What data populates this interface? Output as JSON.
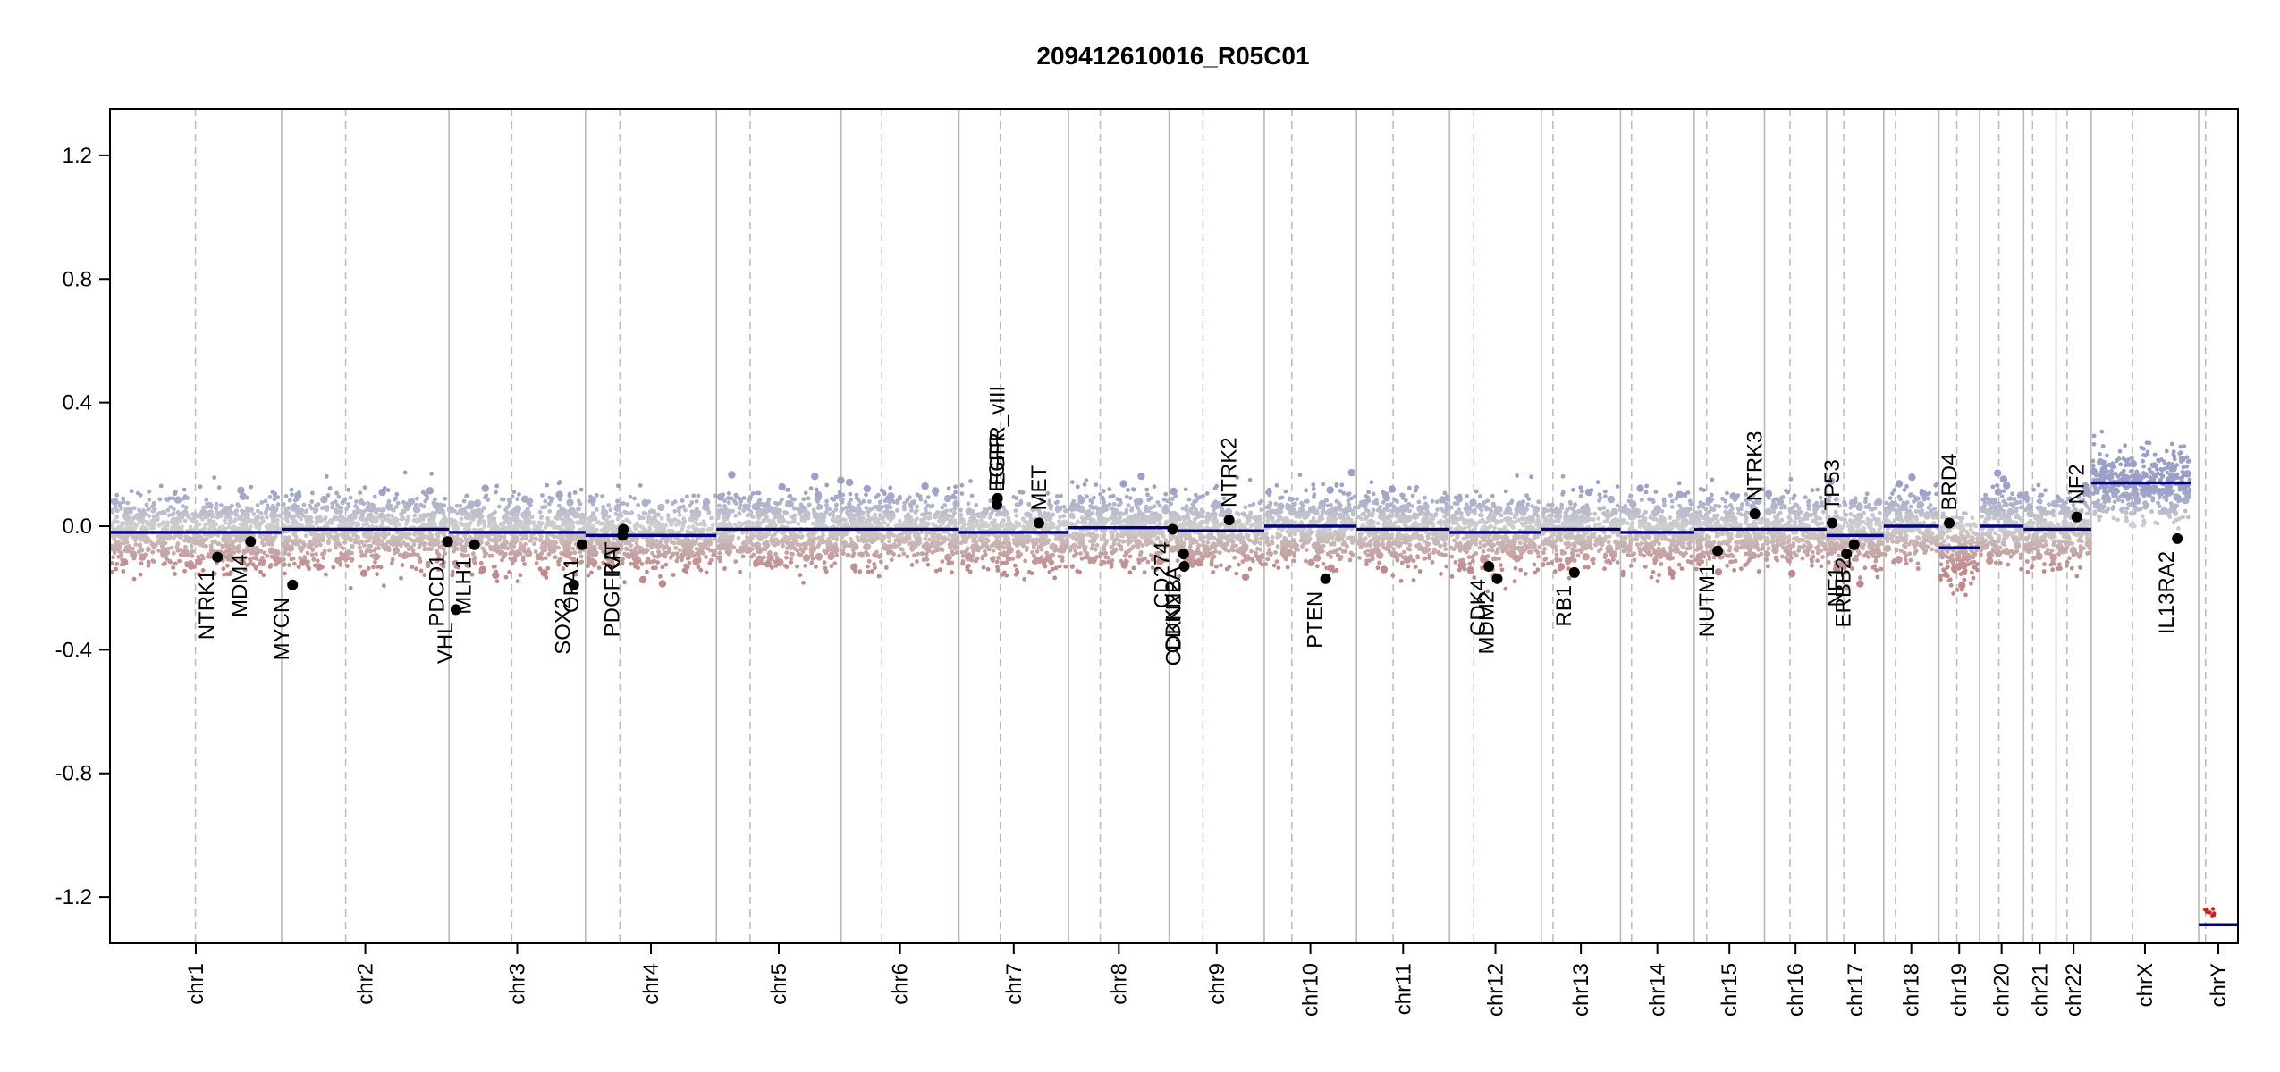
{
  "chart_data": {
    "type": "scatter",
    "title": "209412610016_R05C01",
    "xlabel": "",
    "ylabel": "",
    "ylim": [
      -1.35,
      1.35
    ],
    "y_ticks": [
      {
        "value": 1.2,
        "label": "1.2"
      },
      {
        "value": 0.8,
        "label": "0.8"
      },
      {
        "value": 0.4,
        "label": "0.4"
      },
      {
        "value": 0.0,
        "label": "0.0"
      },
      {
        "value": -0.4,
        "label": "-0.4"
      },
      {
        "value": -0.8,
        "label": "-0.8"
      },
      {
        "value": -1.2,
        "label": "-1.2"
      }
    ],
    "grid": "vertical chromosome boundaries (solid) and centromeres (dashed)",
    "chromosomes": [
      {
        "name": "chr1",
        "start": 0,
        "end": 249,
        "centromere": 124
      },
      {
        "name": "chr2",
        "start": 249,
        "end": 492,
        "centromere": 342
      },
      {
        "name": "chr3",
        "start": 492,
        "end": 690,
        "centromere": 583
      },
      {
        "name": "chr4",
        "start": 690,
        "end": 880,
        "centromere": 740
      },
      {
        "name": "chr5",
        "start": 880,
        "end": 1061,
        "centromere": 929
      },
      {
        "name": "chr6",
        "start": 1061,
        "end": 1232,
        "centromere": 1120
      },
      {
        "name": "chr7",
        "start": 1232,
        "end": 1391,
        "centromere": 1292
      },
      {
        "name": "chr8",
        "start": 1391,
        "end": 1537,
        "centromere": 1437
      },
      {
        "name": "chr9",
        "start": 1537,
        "end": 1675,
        "centromere": 1586
      },
      {
        "name": "chr10",
        "start": 1675,
        "end": 1809,
        "centromere": 1715
      },
      {
        "name": "chr11",
        "start": 1809,
        "end": 1944,
        "centromere": 1862
      },
      {
        "name": "chr12",
        "start": 1944,
        "end": 2077,
        "centromere": 1979
      },
      {
        "name": "chr13",
        "start": 2077,
        "end": 2192,
        "centromere": 2094
      },
      {
        "name": "chr14",
        "start": 2192,
        "end": 2299,
        "centromere": 2208
      },
      {
        "name": "chr15",
        "start": 2299,
        "end": 2401,
        "centromere": 2317
      },
      {
        "name": "chr16",
        "start": 2401,
        "end": 2491,
        "centromere": 2438
      },
      {
        "name": "chr17",
        "start": 2491,
        "end": 2574,
        "centromere": 2516
      },
      {
        "name": "chr18",
        "start": 2574,
        "end": 2654,
        "centromere": 2591
      },
      {
        "name": "chr19",
        "start": 2654,
        "end": 2713,
        "centromere": 2680
      },
      {
        "name": "chr20",
        "start": 2713,
        "end": 2777,
        "centromere": 2741
      },
      {
        "name": "chr21",
        "start": 2777,
        "end": 2824,
        "centromere": 2790
      },
      {
        "name": "chr22",
        "start": 2824,
        "end": 2875,
        "centromere": 2840
      },
      {
        "name": "chrX",
        "start": 2875,
        "end": 3031,
        "centromere": 2935
      },
      {
        "name": "chrY",
        "start": 3031,
        "end": 3088,
        "centromere": 3041
      }
    ],
    "segments": [
      {
        "start": 0,
        "end": 249,
        "value": -0.02
      },
      {
        "start": 249,
        "end": 492,
        "value": -0.01
      },
      {
        "start": 492,
        "end": 690,
        "value": -0.02
      },
      {
        "start": 690,
        "end": 880,
        "value": -0.03
      },
      {
        "start": 880,
        "end": 1232,
        "value": -0.01
      },
      {
        "start": 1232,
        "end": 1391,
        "value": -0.02
      },
      {
        "start": 1391,
        "end": 1537,
        "value": -0.005
      },
      {
        "start": 1537,
        "end": 1675,
        "value": -0.015
      },
      {
        "start": 1675,
        "end": 1809,
        "value": 0.0
      },
      {
        "start": 1809,
        "end": 1944,
        "value": -0.01
      },
      {
        "start": 1944,
        "end": 2077,
        "value": -0.02
      },
      {
        "start": 2077,
        "end": 2192,
        "value": -0.01
      },
      {
        "start": 2192,
        "end": 2299,
        "value": -0.02
      },
      {
        "start": 2299,
        "end": 2401,
        "value": -0.01
      },
      {
        "start": 2401,
        "end": 2491,
        "value": -0.01
      },
      {
        "start": 2491,
        "end": 2574,
        "value": -0.03
      },
      {
        "start": 2574,
        "end": 2654,
        "value": 0.0
      },
      {
        "start": 2654,
        "end": 2713,
        "value": -0.07
      },
      {
        "start": 2713,
        "end": 2777,
        "value": 0.0
      },
      {
        "start": 2777,
        "end": 2824,
        "value": -0.01
      },
      {
        "start": 2824,
        "end": 2875,
        "value": -0.01
      },
      {
        "start": 2875,
        "end": 3020,
        "value": 0.14
      },
      {
        "start": 3031,
        "end": 3088,
        "value": -1.29
      }
    ],
    "genes": [
      {
        "name": "NTRK1",
        "pos": 156,
        "value": -0.1,
        "side": "below"
      },
      {
        "name": "MDM4",
        "pos": 204,
        "value": -0.05,
        "side": "below"
      },
      {
        "name": "MYCN",
        "pos": 265,
        "value": -0.19,
        "side": "below"
      },
      {
        "name": "PDCD1",
        "pos": 490,
        "value": -0.05,
        "side": "below"
      },
      {
        "name": "VHL",
        "pos": 502,
        "value": -0.27,
        "side": "below"
      },
      {
        "name": "MLH1",
        "pos": 529,
        "value": -0.06,
        "side": "below"
      },
      {
        "name": "SOX2",
        "pos": 673,
        "value": -0.19,
        "side": "below"
      },
      {
        "name": "OPA1",
        "pos": 685,
        "value": -0.06,
        "side": "below"
      },
      {
        "name": "PDGFRA",
        "pos": 744,
        "value": -0.03,
        "side": "below"
      },
      {
        "name": "KIT",
        "pos": 745,
        "value": -0.01,
        "side": "below"
      },
      {
        "name": "EGFR",
        "pos": 1287,
        "value": 0.07,
        "side": "above"
      },
      {
        "name": "EGFR_vIII",
        "pos": 1288,
        "value": 0.09,
        "side": "above"
      },
      {
        "name": "MET",
        "pos": 1348,
        "value": 0.01,
        "side": "above"
      },
      {
        "name": "CD274",
        "pos": 1542,
        "value": -0.01,
        "side": "below"
      },
      {
        "name": "CDKN2A",
        "pos": 1558,
        "value": -0.09,
        "side": "below"
      },
      {
        "name": "CDKN2B",
        "pos": 1559,
        "value": -0.13,
        "side": "below"
      },
      {
        "name": "NTRK2",
        "pos": 1624,
        "value": 0.02,
        "side": "above"
      },
      {
        "name": "PTEN",
        "pos": 1764,
        "value": -0.17,
        "side": "below"
      },
      {
        "name": "CDK4",
        "pos": 2001,
        "value": -0.13,
        "side": "below"
      },
      {
        "name": "MDM2",
        "pos": 2013,
        "value": -0.17,
        "side": "below"
      },
      {
        "name": "RB1",
        "pos": 2125,
        "value": -0.15,
        "side": "below"
      },
      {
        "name": "NUTM1",
        "pos": 2333,
        "value": -0.08,
        "side": "below"
      },
      {
        "name": "NTRK3",
        "pos": 2387,
        "value": 0.04,
        "side": "above"
      },
      {
        "name": "TP53",
        "pos": 2499,
        "value": 0.01,
        "side": "above"
      },
      {
        "name": "NF1",
        "pos": 2520,
        "value": -0.09,
        "side": "below"
      },
      {
        "name": "ERBB2",
        "pos": 2531,
        "value": -0.06,
        "side": "below"
      },
      {
        "name": "BRD4",
        "pos": 2669,
        "value": 0.01,
        "side": "above"
      },
      {
        "name": "NF2",
        "pos": 2854,
        "value": 0.03,
        "side": "above"
      },
      {
        "name": "IL13RA2",
        "pos": 3000,
        "value": -0.04,
        "side": "below"
      }
    ],
    "colors": {
      "gain": "#9aa0c8",
      "neutral": "#cfcfcf",
      "loss": "#c08a8a",
      "segment": "#000080",
      "chrY_points": "#d02020"
    }
  }
}
